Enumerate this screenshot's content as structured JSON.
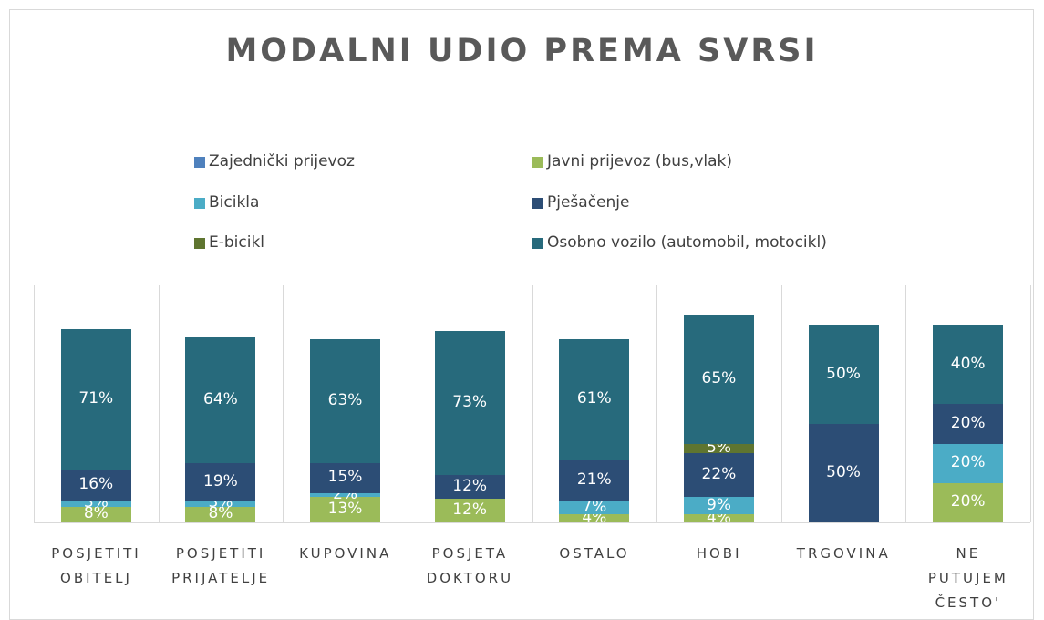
{
  "chart_data": {
    "type": "stacked_bar",
    "title": "MODALNI UDIO PREMA SVRSI",
    "categories": [
      "POSJETITI OBITELJ",
      "POSJETITI PRIJATELJE",
      "KUPOVINA",
      "POSJETA DOKTORU",
      "OSTALO",
      "HOBI",
      "TRGOVINA",
      "NE PUTUJEM ČESTO'"
    ],
    "series": [
      {
        "name": "Zajednički prijevoz",
        "color": "#4f81bd",
        "values": [
          0,
          0,
          0,
          0,
          0,
          0,
          0,
          0
        ],
        "value_labels": [
          null,
          null,
          null,
          null,
          null,
          null,
          null,
          null
        ]
      },
      {
        "name": "Javni prijevoz (bus,vlak)",
        "color": "#9bbb59",
        "values": [
          8,
          8,
          13,
          12,
          4,
          4,
          0,
          20
        ],
        "value_labels": [
          "8%",
          "8%",
          "13%",
          "12%",
          "4%",
          "4%",
          null,
          "20%"
        ]
      },
      {
        "name": "Bicikla",
        "color": "#4bacc6",
        "values": [
          3,
          3,
          2,
          0,
          7,
          9,
          0,
          20
        ],
        "value_labels": [
          "3%",
          "3%",
          "2%",
          null,
          "7%",
          "9%",
          null,
          "20%"
        ]
      },
      {
        "name": "Pješačenje",
        "color": "#2c4d75",
        "values": [
          16,
          19,
          15,
          12,
          21,
          22,
          50,
          20
        ],
        "value_labels": [
          "16%",
          "19%",
          "15%",
          "12%",
          "21%",
          "22%",
          "50%",
          "20%"
        ]
      },
      {
        "name": "E-bicikl",
        "color": "#5f7530",
        "values": [
          0,
          0,
          0,
          0,
          0,
          5,
          0,
          0
        ],
        "value_labels": [
          null,
          null,
          null,
          null,
          null,
          "5%",
          null,
          null
        ]
      },
      {
        "name": "Osobno vozilo (automobil, motocikl)",
        "color": "#276a7c",
        "values": [
          71,
          64,
          63,
          73,
          61,
          65,
          50,
          40
        ],
        "value_labels": [
          "71%",
          "64%",
          "63%",
          "73%",
          "61%",
          "65%",
          "50%",
          "40%"
        ]
      }
    ]
  }
}
